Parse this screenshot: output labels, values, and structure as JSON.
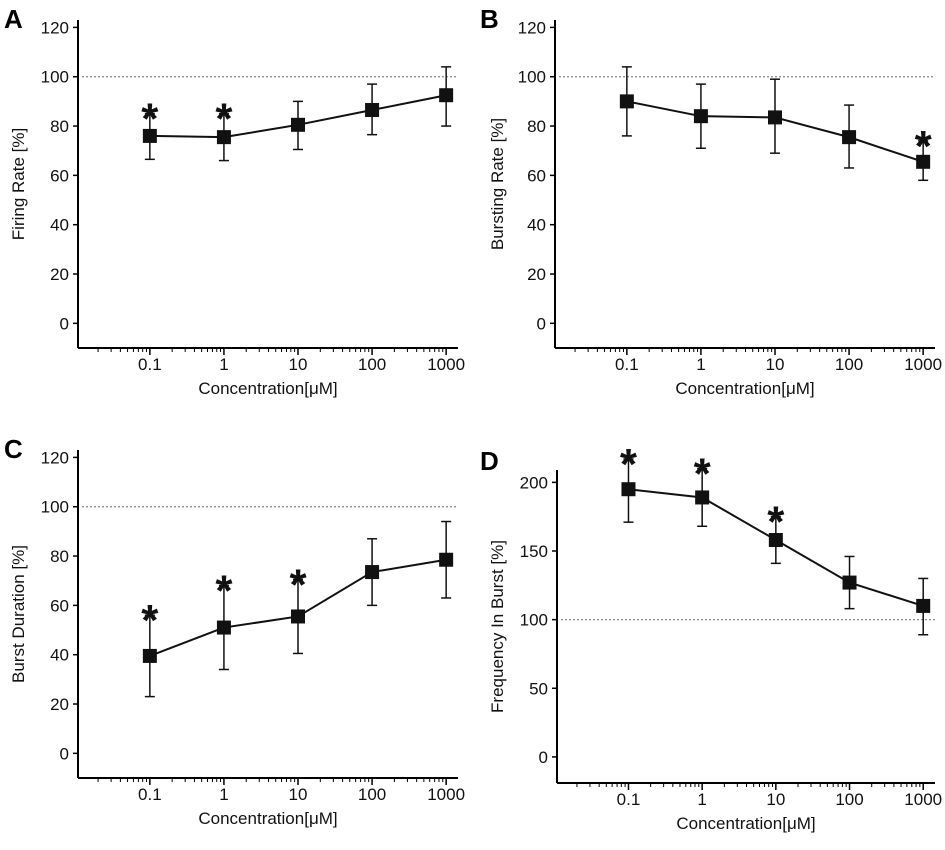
{
  "chart_data": [
    {
      "panel": "A",
      "type": "line",
      "title": "",
      "xlabel": "Concentration[μM]",
      "ylabel": "Firing Rate [%]",
      "xscale": "log",
      "x": [
        0.1,
        1,
        10,
        100,
        1000
      ],
      "x_tick_labels": [
        "0.1",
        "1",
        "10",
        "100",
        "1000"
      ],
      "y_ticks": [
        0,
        20,
        40,
        60,
        80,
        100,
        120
      ],
      "ylim": [
        -10,
        123
      ],
      "values": [
        76,
        75.5,
        80.5,
        86.5,
        92.5
      ],
      "err_upper": [
        85,
        85,
        90,
        97,
        104
      ],
      "err_lower": [
        66.5,
        66,
        70.5,
        76.5,
        80
      ],
      "significant": [
        true,
        true,
        false,
        false,
        false
      ],
      "reference_line": 100,
      "significance_marker": "*"
    },
    {
      "panel": "B",
      "type": "line",
      "title": "",
      "xlabel": "Concentration[μM]",
      "ylabel": "Bursting Rate [%]",
      "xscale": "log",
      "x": [
        0.1,
        1,
        10,
        100,
        1000
      ],
      "x_tick_labels": [
        "0.1",
        "1",
        "10",
        "100",
        "1000"
      ],
      "y_ticks": [
        0,
        20,
        40,
        60,
        80,
        100,
        120
      ],
      "ylim": [
        -10,
        123
      ],
      "values": [
        90,
        84,
        83.5,
        75.5,
        65.5
      ],
      "err_upper": [
        104,
        97,
        99,
        88.5,
        74
      ],
      "err_lower": [
        76,
        71,
        69,
        63,
        58
      ],
      "significant": [
        false,
        false,
        false,
        false,
        true
      ],
      "reference_line": 100,
      "significance_marker": "*"
    },
    {
      "panel": "C",
      "type": "line",
      "title": "",
      "xlabel": "Concentration[μM]",
      "ylabel": "Burst Duration [%]",
      "xscale": "log",
      "x": [
        0.1,
        1,
        10,
        100,
        1000
      ],
      "x_tick_labels": [
        "0.1",
        "1",
        "10",
        "100",
        "1000"
      ],
      "y_ticks": [
        0,
        20,
        40,
        60,
        80,
        100,
        120
      ],
      "ylim": [
        -10,
        123
      ],
      "values": [
        39.5,
        51,
        55.5,
        73.5,
        78.5
      ],
      "err_upper": [
        56,
        68,
        70.5,
        87,
        94
      ],
      "err_lower": [
        23,
        34,
        40.5,
        60,
        63
      ],
      "significant": [
        true,
        true,
        true,
        false,
        false
      ],
      "reference_line": 100,
      "significance_marker": "*"
    },
    {
      "panel": "D",
      "type": "line",
      "title": "",
      "xlabel": "Concentration[μM]",
      "ylabel": "Frequency In Burst [%]",
      "xscale": "log",
      "x": [
        0.1,
        1,
        10,
        100,
        1000
      ],
      "x_tick_labels": [
        "0.1",
        "1",
        "10",
        "100",
        "1000"
      ],
      "y_ticks": [
        0,
        50,
        100,
        150,
        200
      ],
      "ylim": [
        -19,
        209
      ],
      "values": [
        195,
        189,
        158,
        127,
        110
      ],
      "err_upper": [
        217,
        210,
        175,
        146,
        130
      ],
      "err_lower": [
        171,
        168,
        141,
        108,
        89
      ],
      "significant": [
        true,
        true,
        true,
        false,
        false
      ],
      "reference_line": 100,
      "significance_marker": "*"
    }
  ]
}
